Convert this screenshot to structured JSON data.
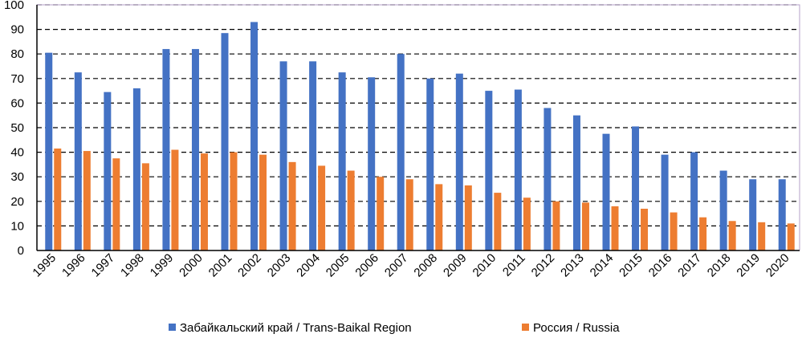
{
  "chart_data": {
    "type": "bar",
    "categories": [
      "1995",
      "1996",
      "1997",
      "1998",
      "1999",
      "2000",
      "2001",
      "2002",
      "2003",
      "2004",
      "2005",
      "2006",
      "2007",
      "2008",
      "2009",
      "2010",
      "2011",
      "2012",
      "2013",
      "2014",
      "2015",
      "2016",
      "2017",
      "2018",
      "2019",
      "2020"
    ],
    "series": [
      {
        "name": "Забайкальский край / Trans-Baikal Region",
        "color": "#4472C4",
        "values": [
          80.5,
          72.5,
          64.5,
          66,
          82,
          82,
          88.5,
          93,
          77,
          77,
          72.5,
          70.5,
          80,
          70,
          72,
          65,
          65.5,
          58,
          55,
          47.5,
          50.5,
          39,
          40,
          32.5,
          29,
          29
        ]
      },
      {
        "name": "Россия / Russia",
        "color": "#ED7D31",
        "values": [
          41.5,
          40.5,
          37.5,
          35.5,
          41,
          39.5,
          40,
          39,
          36,
          34.5,
          32.5,
          30,
          29,
          27,
          26.5,
          23.5,
          21.5,
          20,
          19.5,
          18,
          17,
          15.5,
          13.5,
          12,
          11.5,
          11
        ]
      }
    ],
    "yticks": [
      "0",
      "10",
      "20",
      "30",
      "40",
      "50",
      "60",
      "70",
      "80",
      "90",
      "100"
    ],
    "ylim": [
      0,
      100
    ],
    "grid": "dashed horizontal",
    "legend_position": "bottom"
  }
}
